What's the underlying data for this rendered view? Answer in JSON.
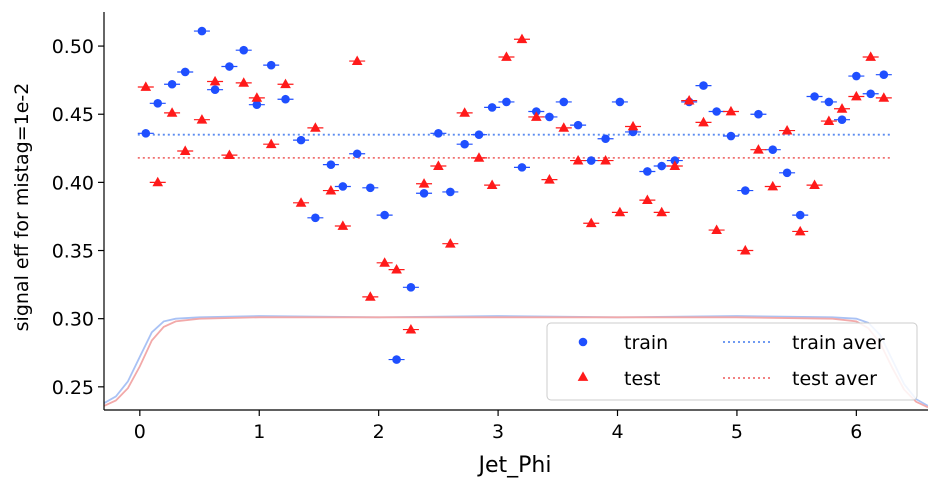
{
  "chart_data": {
    "type": "scatter",
    "xlabel": "Jet_Phi",
    "ylabel": "signal eff for mistag=1e-2",
    "xlim": [
      -0.3,
      6.6
    ],
    "ylim": [
      0.233,
      0.525
    ],
    "xticks": [
      0,
      1,
      2,
      3,
      4,
      5,
      6
    ],
    "yticks": [
      0.25,
      0.3,
      0.35,
      0.4,
      0.45,
      0.5
    ],
    "ytick_labels": [
      "0.25",
      "0.30",
      "0.35",
      "0.40",
      "0.45",
      "0.50"
    ],
    "legend_position": "lower-right",
    "series": [
      {
        "name": "train",
        "marker": "circle",
        "color": "#1f4fff",
        "x": [
          0.05,
          0.15,
          0.27,
          0.38,
          0.52,
          0.63,
          0.75,
          0.87,
          0.98,
          1.1,
          1.22,
          1.35,
          1.47,
          1.6,
          1.7,
          1.82,
          1.93,
          2.05,
          2.15,
          2.27,
          2.38,
          2.5,
          2.6,
          2.72,
          2.84,
          2.95,
          3.07,
          3.2,
          3.32,
          3.43,
          3.55,
          3.67,
          3.78,
          3.9,
          4.02,
          4.13,
          4.25,
          4.37,
          4.48,
          4.6,
          4.72,
          4.83,
          4.95,
          5.07,
          5.18,
          5.3,
          5.42,
          5.53,
          5.65,
          5.77,
          5.88,
          6.0,
          6.12,
          6.23
        ],
        "y": [
          0.436,
          0.458,
          0.472,
          0.481,
          0.511,
          0.468,
          0.485,
          0.497,
          0.457,
          0.486,
          0.461,
          0.431,
          0.374,
          0.413,
          0.397,
          0.421,
          0.396,
          0.376,
          0.27,
          0.323,
          0.392,
          0.436,
          0.393,
          0.428,
          0.435,
          0.455,
          0.459,
          0.411,
          0.452,
          0.448,
          0.459,
          0.442,
          0.416,
          0.432,
          0.459,
          0.437,
          0.408,
          0.412,
          0.416,
          0.459,
          0.471,
          0.452,
          0.434,
          0.394,
          0.45,
          0.424,
          0.407,
          0.376,
          0.463,
          0.459,
          0.446,
          0.478,
          0.465,
          0.479
        ]
      },
      {
        "name": "test",
        "marker": "triangle",
        "color": "#ff1a1a",
        "x": [
          0.05,
          0.15,
          0.27,
          0.38,
          0.52,
          0.63,
          0.75,
          0.87,
          0.98,
          1.1,
          1.22,
          1.35,
          1.47,
          1.6,
          1.7,
          1.82,
          1.93,
          2.05,
          2.15,
          2.27,
          2.38,
          2.5,
          2.6,
          2.72,
          2.84,
          2.95,
          3.07,
          3.2,
          3.32,
          3.43,
          3.55,
          3.67,
          3.78,
          3.9,
          4.02,
          4.13,
          4.25,
          4.37,
          4.48,
          4.6,
          4.72,
          4.83,
          4.95,
          5.07,
          5.18,
          5.3,
          5.42,
          5.53,
          5.65,
          5.77,
          5.88,
          6.0,
          6.12,
          6.23
        ],
        "y": [
          0.47,
          0.4,
          0.451,
          0.423,
          0.446,
          0.474,
          0.42,
          0.473,
          0.462,
          0.428,
          0.472,
          0.385,
          0.44,
          0.394,
          0.368,
          0.489,
          0.316,
          0.341,
          0.336,
          0.292,
          0.399,
          0.412,
          0.355,
          0.451,
          0.418,
          0.398,
          0.492,
          0.505,
          0.448,
          0.402,
          0.44,
          0.416,
          0.37,
          0.416,
          0.378,
          0.441,
          0.387,
          0.378,
          0.412,
          0.46,
          0.444,
          0.365,
          0.452,
          0.35,
          0.424,
          0.397,
          0.438,
          0.364,
          0.398,
          0.445,
          0.454,
          0.463,
          0.492,
          0.462
        ]
      },
      {
        "name": "train aver",
        "type": "hline",
        "style": "dotted",
        "color": "#5b8cf0",
        "y": 0.435
      },
      {
        "name": "test aver",
        "type": "hline",
        "style": "dotted",
        "color": "#f07070",
        "y": 0.418
      },
      {
        "type": "curve",
        "color": "#a9c2f5",
        "x": [
          -0.3,
          -0.2,
          -0.1,
          0.0,
          0.1,
          0.2,
          0.3,
          0.5,
          1.0,
          2.0,
          3.0,
          4.0,
          5.0,
          5.8,
          6.0,
          6.1,
          6.2,
          6.3,
          6.4,
          6.5,
          6.6
        ],
        "y": [
          0.238,
          0.243,
          0.254,
          0.272,
          0.29,
          0.298,
          0.3,
          0.301,
          0.302,
          0.301,
          0.302,
          0.301,
          0.302,
          0.301,
          0.3,
          0.297,
          0.288,
          0.27,
          0.252,
          0.241,
          0.236
        ]
      },
      {
        "type": "curve",
        "color": "#f2a9a9",
        "x": [
          -0.3,
          -0.2,
          -0.1,
          0.0,
          0.1,
          0.2,
          0.3,
          0.5,
          1.0,
          2.0,
          3.0,
          4.0,
          5.0,
          5.8,
          6.0,
          6.1,
          6.2,
          6.3,
          6.4,
          6.5,
          6.6
        ],
        "y": [
          0.236,
          0.24,
          0.249,
          0.265,
          0.284,
          0.294,
          0.298,
          0.3,
          0.301,
          0.301,
          0.301,
          0.301,
          0.301,
          0.3,
          0.298,
          0.293,
          0.282,
          0.264,
          0.248,
          0.239,
          0.235
        ]
      }
    ]
  }
}
